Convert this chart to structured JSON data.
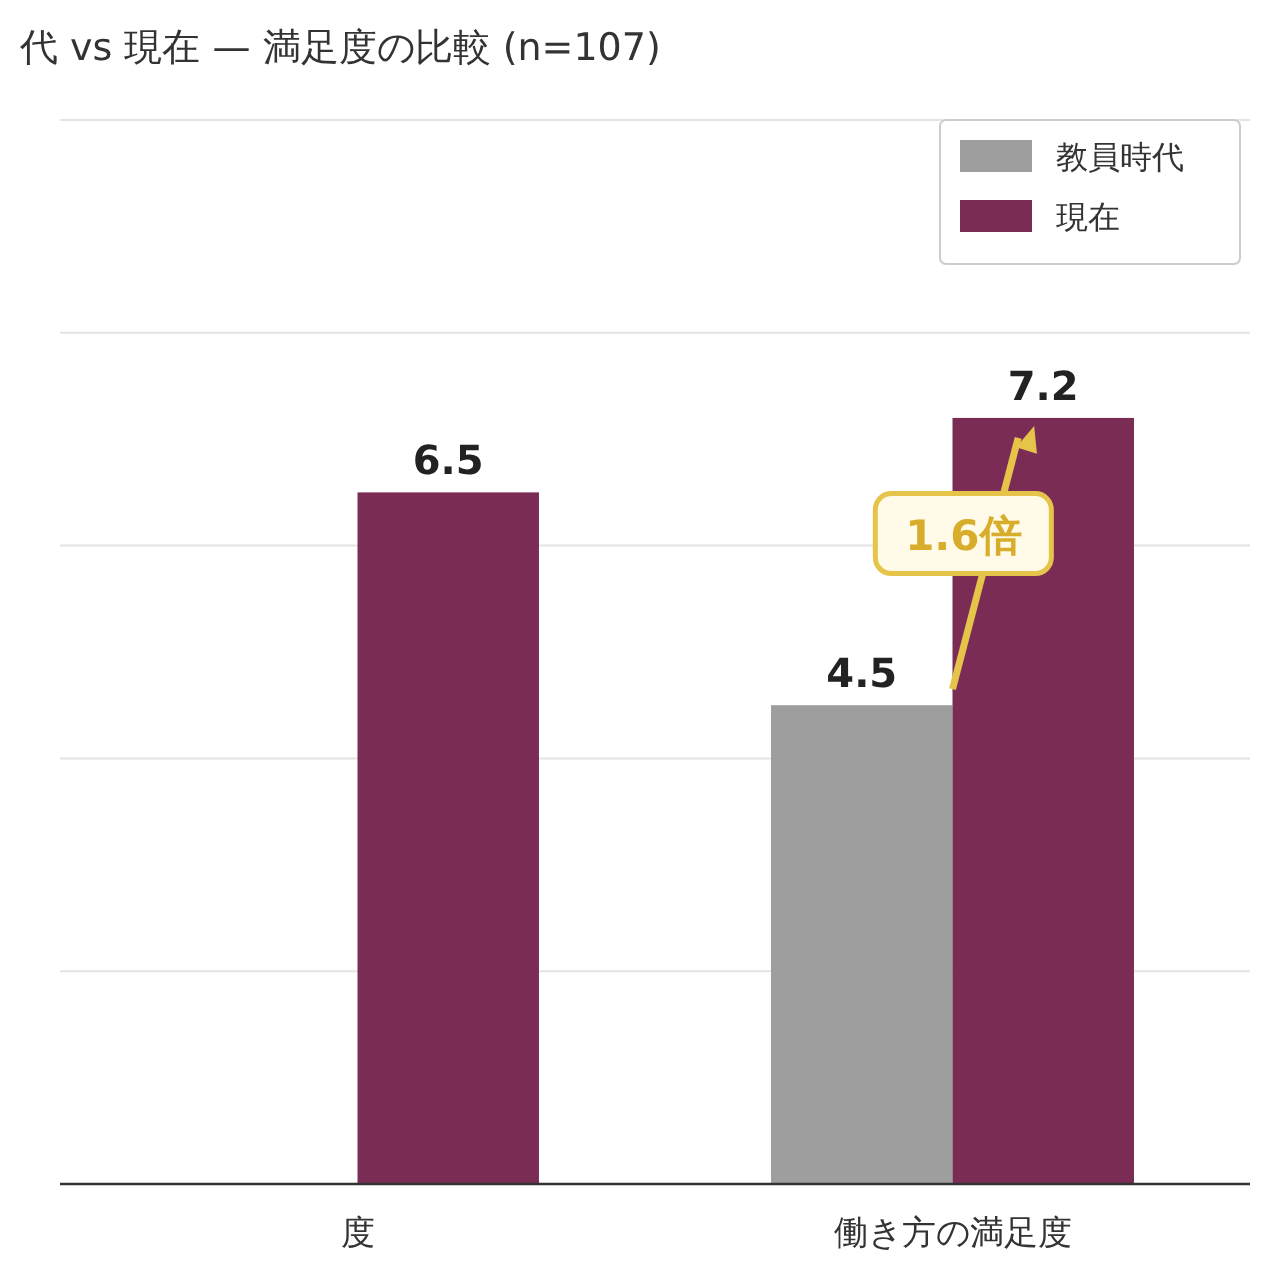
{
  "chart_data": {
    "type": "bar",
    "title": "代 vs 現在 — 満足度の比較 (n=107)",
    "categories": [
      "度",
      "働き方の満足度"
    ],
    "series": [
      {
        "name": "教員時代",
        "color": "#9e9e9e",
        "values": [
          null,
          4.5
        ],
        "value_labels": [
          null,
          "4.5"
        ]
      },
      {
        "name": "現在",
        "color": "#7a2c55",
        "values": [
          6.5,
          7.2
        ],
        "value_labels": [
          "6.5",
          "7.2"
        ]
      }
    ],
    "ylim": [
      0,
      10
    ],
    "yticks": [
      {
        "value": 0,
        "label": null
      },
      {
        "value": 2,
        "label": null
      },
      {
        "value": 4,
        "label": null
      },
      {
        "value": 6,
        "label": null
      },
      {
        "value": 8,
        "label": null
      },
      {
        "value": 10,
        "label": null
      }
    ],
    "grid": "y",
    "legend": "top right",
    "tick_labels": "x",
    "annotations": [
      "1.6倍"
    ]
  }
}
